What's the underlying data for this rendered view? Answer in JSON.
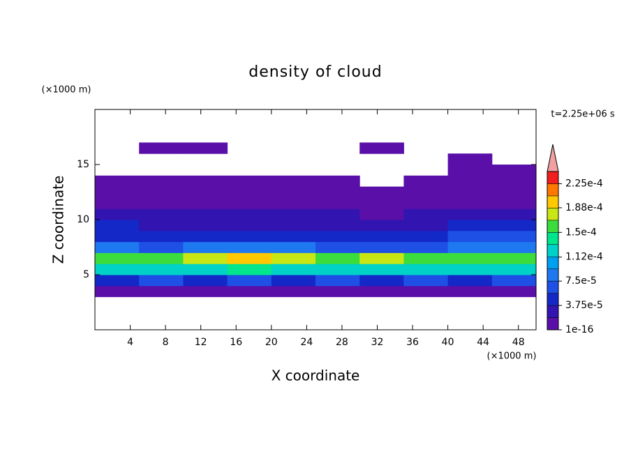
{
  "chart_data": {
    "type": "contour",
    "title": "density of cloud",
    "x_label": "X coordinate",
    "y_label": "Z coordinate",
    "x_unit": "(×1000 m)",
    "y_unit": "(×1000 m)",
    "time_label": "t=2.25e+06 s",
    "xlim": [
      0,
      50
    ],
    "ylim": [
      0,
      20
    ],
    "xticks": [
      4,
      8,
      12,
      16,
      20,
      24,
      28,
      32,
      36,
      40,
      44,
      48
    ],
    "yticks": [
      5,
      10,
      15
    ],
    "x_edges": [
      0,
      5,
      10,
      15,
      20,
      25,
      30,
      35,
      40,
      45,
      50
    ],
    "z_edges": [
      3,
      4,
      5,
      6,
      7,
      8,
      9,
      10,
      11,
      12,
      13,
      14,
      15,
      16,
      17
    ],
    "grid_values": [
      [
        1e-05,
        1e-05,
        1e-05,
        1e-05,
        1e-05,
        1e-05,
        1e-05,
        1e-05,
        1e-05,
        1e-05
      ],
      [
        5e-05,
        6e-05,
        5.5e-05,
        6e-05,
        5e-05,
        6e-05,
        5.5e-05,
        6e-05,
        5e-05,
        6e-05
      ],
      [
        0.00012,
        0.00013,
        0.00013,
        0.00014,
        0.00013,
        0.00013,
        0.00013,
        0.00012,
        0.00013,
        0.00012
      ],
      [
        0.00015,
        0.00016,
        0.00017,
        0.00019,
        0.00017,
        0.00016,
        0.00017,
        0.00015,
        0.00016,
        0.00015
      ],
      [
        8e-05,
        7e-05,
        8e-05,
        9e-05,
        8e-05,
        7e-05,
        7e-05,
        6e-05,
        8e-05,
        9e-05
      ],
      [
        5e-05,
        4e-05,
        4.5e-05,
        4e-05,
        4e-05,
        3.8e-05,
        4e-05,
        5e-05,
        6e-05,
        6e-05
      ],
      [
        4e-05,
        3e-05,
        3e-05,
        2.5e-05,
        2.5e-05,
        2.5e-05,
        3e-05,
        3e-05,
        4e-05,
        4e-05
      ],
      [
        2.5e-05,
        2e-05,
        2e-05,
        2e-05,
        2e-05,
        2e-05,
        1.8e-05,
        2e-05,
        2e-05,
        2.5e-05
      ],
      [
        1.5e-05,
        1.2e-05,
        1.2e-05,
        1e-05,
        1e-05,
        1e-05,
        1e-05,
        1e-05,
        1.5e-05,
        1.5e-05
      ],
      [
        1e-05,
        8e-06,
        8e-06,
        5e-06,
        5e-06,
        5e-06,
        5e-06,
        5e-06,
        1e-05,
        1e-05
      ],
      [
        5e-06,
        3e-06,
        3e-06,
        3e-06,
        3e-06,
        3e-06,
        0,
        3e-06,
        5e-06,
        5e-06
      ],
      [
        0,
        0,
        0,
        0,
        0,
        0,
        0,
        0,
        3e-06,
        3e-06
      ],
      [
        0,
        0,
        0,
        0,
        0,
        0,
        0,
        0,
        3e-06,
        0
      ],
      [
        0,
        3e-06,
        3e-06,
        0,
        0,
        0,
        3e-06,
        0,
        0,
        0
      ]
    ],
    "levels": [
      1e-16,
      1.875e-05,
      3.75e-05,
      5.625e-05,
      7.5e-05,
      9.375e-05,
      0.0001125,
      0.00013125,
      0.00015,
      0.00016875,
      0.0001875,
      0.00020625,
      0.000225,
      0.00024375
    ],
    "level_colors": [
      "#5a0fa8",
      "#3214b0",
      "#1428c8",
      "#1e50e6",
      "#1e78f0",
      "#00a0f0",
      "#00d2c8",
      "#00e68c",
      "#3cdc3c",
      "#c8e614",
      "#ffc800",
      "#ff7800",
      "#f01e1e",
      "#f0a0a0"
    ],
    "colorbar_ticks": [
      {
        "value": 1e-16,
        "label": "1e-16"
      },
      {
        "value": 3.75e-05,
        "label": "3.75e-5"
      },
      {
        "value": 7.5e-05,
        "label": "7.5e-5"
      },
      {
        "value": 0.000112,
        "label": "1.12e-4"
      },
      {
        "value": 0.00015,
        "label": "1.5e-4"
      },
      {
        "value": 0.000188,
        "label": "1.88e-4"
      },
      {
        "value": 0.000225,
        "label": "2.25e-4"
      }
    ]
  }
}
